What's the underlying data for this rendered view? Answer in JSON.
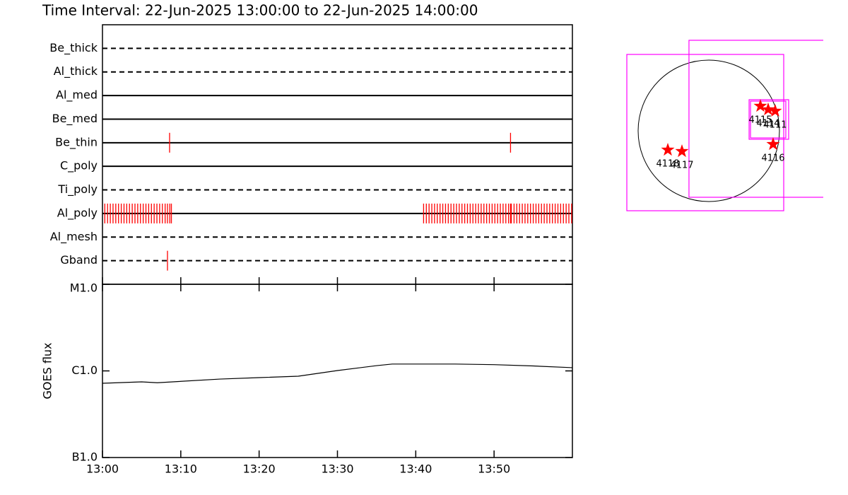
{
  "title": "Time Interval: 22-Jun-2025 13:00:00 to 22-Jun-2025 14:00:00",
  "chart_data": [
    {
      "type": "timeline",
      "xlim": [
        0,
        60
      ],
      "event_color": "#ff0000",
      "line_color": "#000000",
      "rows": [
        {
          "name": "Be_thick",
          "style": "dashed",
          "events": []
        },
        {
          "name": "Al_thick",
          "style": "dashed",
          "events": []
        },
        {
          "name": "Al_med",
          "style": "solid",
          "events": []
        },
        {
          "name": "Be_med",
          "style": "solid",
          "events": []
        },
        {
          "name": "Be_thin",
          "style": "solid",
          "events": [
            8.57,
            52.1
          ]
        },
        {
          "name": "C_poly",
          "style": "solid",
          "events": []
        },
        {
          "name": "Ti_poly",
          "style": "dashed",
          "events": []
        },
        {
          "name": "Al_poly",
          "style": "solid",
          "events": [
            0.3,
            0.65,
            1.0,
            1.35,
            1.7,
            2.05,
            2.4,
            2.75,
            3.1,
            3.45,
            3.8,
            4.15,
            4.5,
            4.85,
            5.2,
            5.55,
            5.9,
            6.25,
            6.6,
            6.95,
            7.3,
            7.65,
            8.0,
            8.3,
            8.6,
            8.8,
            41.0,
            41.35,
            41.7,
            42.05,
            42.4,
            42.75,
            43.1,
            43.45,
            43.8,
            44.15,
            44.5,
            44.85,
            45.2,
            45.55,
            45.9,
            46.25,
            46.6,
            46.95,
            47.3,
            47.65,
            48.0,
            48.35,
            48.7,
            49.05,
            49.4,
            49.75,
            50.1,
            50.45,
            50.8,
            51.15,
            51.5,
            51.85,
            52.1,
            52.2,
            52.55,
            52.9,
            53.25,
            53.6,
            53.95,
            54.3,
            54.65,
            55.0,
            55.35,
            55.7,
            56.05,
            56.4,
            56.75,
            57.1,
            57.45,
            57.8,
            58.15,
            58.5,
            58.85,
            59.2,
            59.55,
            59.9
          ]
        },
        {
          "name": "Al_mesh",
          "style": "dashed",
          "events": []
        },
        {
          "name": "Gband",
          "style": "dashed",
          "events": [
            8.3
          ]
        }
      ]
    },
    {
      "type": "line",
      "y_label": "GOES flux",
      "log_y": true,
      "color": "#000000",
      "x": [
        0,
        5,
        7,
        15,
        20,
        25,
        30,
        35,
        37,
        45,
        50,
        55,
        60
      ],
      "values": [
        7.2e-07,
        7.47e-07,
        7.3e-07,
        8.05e-07,
        8.36e-07,
        8.69e-07,
        1.01e-06,
        1.15e-06,
        1.2e-06,
        1.2e-06,
        1.18e-06,
        1.14e-06,
        1.09e-06
      ],
      "xlim": [
        0,
        60
      ],
      "xticks": [
        {
          "value": 0,
          "label": "13:00"
        },
        {
          "value": 10,
          "label": "13:10"
        },
        {
          "value": 20,
          "label": "13:20"
        },
        {
          "value": 30,
          "label": "13:30"
        },
        {
          "value": 40,
          "label": "13:40"
        },
        {
          "value": 50,
          "label": "13:50"
        }
      ],
      "ylim": [
        1e-07,
        1e-05
      ],
      "yticks": [
        {
          "value": 1e-07,
          "label": "B1.0"
        },
        {
          "value": 1e-06,
          "label": "C1.0"
        },
        {
          "value": 1e-05,
          "label": "M1.0"
        }
      ]
    },
    {
      "type": "map",
      "solar_radius": 945,
      "disk_color": "#000000",
      "box_color": "#ff00ff",
      "marker_color": "#ff0000",
      "boxes": [
        {
          "x0": -1096,
          "x1": 1002,
          "y0": 1021,
          "y1": -1068
        },
        {
          "x0": -265,
          "x1": 2000,
          "y0": 1210,
          "y1": -888
        },
        {
          "x0": 539,
          "x1": 1068,
          "y0": 416,
          "y1": -113
        },
        {
          "x0": 558,
          "x1": 1030,
          "y0": 397,
          "y1": -95
        }
      ],
      "markers": [
        {
          "label": "4115",
          "x": 690,
          "y": 331
        },
        {
          "label": "4114",
          "x": 794,
          "y": 284
        },
        {
          "label": "4111",
          "x": 888,
          "y": 265
        },
        {
          "label": "4116",
          "x": 860,
          "y": -180
        },
        {
          "label": "4118",
          "x": -548,
          "y": -255
        },
        {
          "label": "4117",
          "x": -359,
          "y": -274
        }
      ]
    }
  ]
}
